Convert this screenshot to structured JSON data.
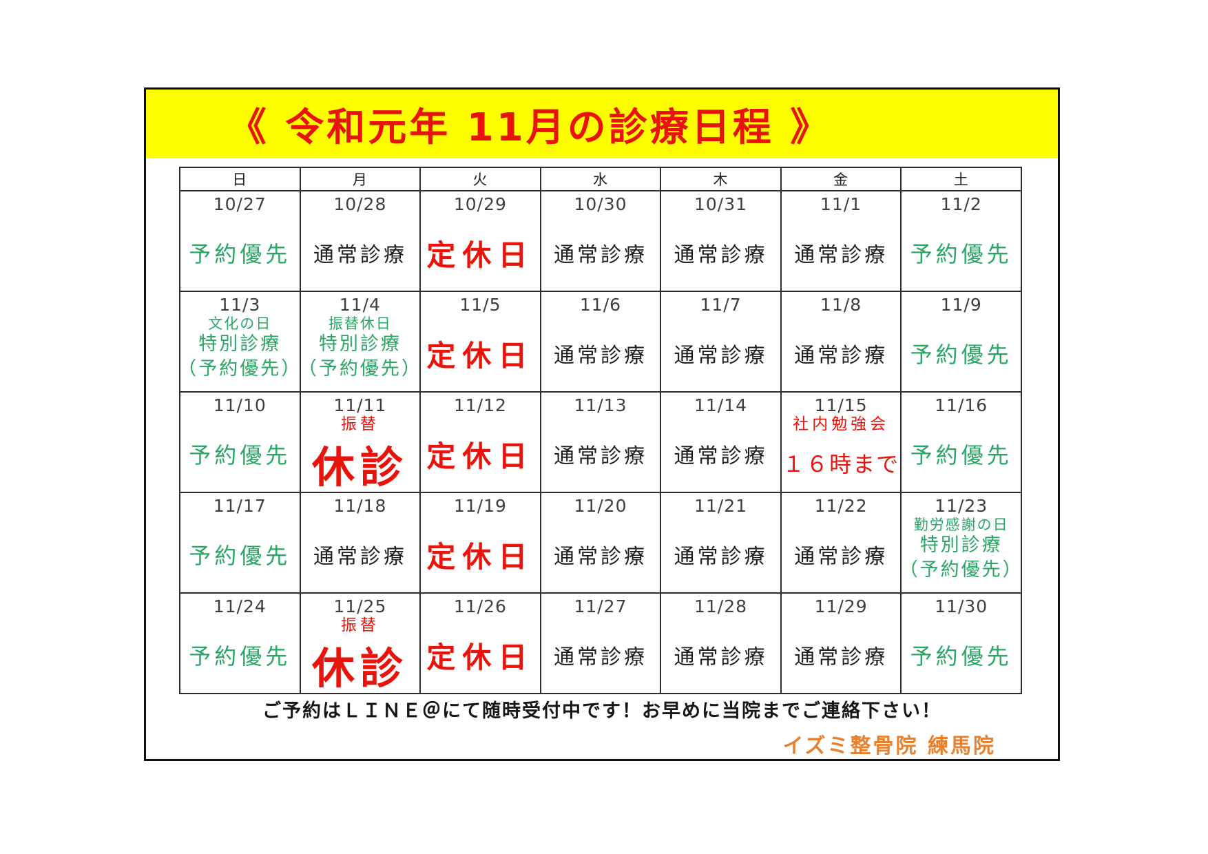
{
  "page": {
    "title": "《 令和元年 11月の診療日程 》",
    "footer_note": "ご予約はＬＩＮＥ＠にて随時受付中です！お早めに当院までご連絡下さい！",
    "signature": "イズミ整骨院 練馬院"
  },
  "colors": {
    "banner_yellow": "#ffff00",
    "title_red": "#e8140c",
    "status_red": "#e8140c",
    "status_green": "#28a764",
    "status_black": "#1e1e1e",
    "signature_orange": "#e8802e"
  },
  "calendar": {
    "weekday_headers": [
      "日",
      "月",
      "火",
      "水",
      "木",
      "金",
      "土"
    ],
    "weeks": [
      [
        {
          "date": "10/27",
          "status": [
            "予約優先"
          ],
          "style": "green"
        },
        {
          "date": "10/28",
          "status": [
            "通常診療"
          ],
          "style": "black"
        },
        {
          "date": "10/29",
          "status": [
            "定休日"
          ],
          "style": "red-large"
        },
        {
          "date": "10/30",
          "status": [
            "通常診療"
          ],
          "style": "black"
        },
        {
          "date": "10/31",
          "status": [
            "通常診療"
          ],
          "style": "black"
        },
        {
          "date": "11/1",
          "status": [
            "通常診療"
          ],
          "style": "black"
        },
        {
          "date": "11/2",
          "status": [
            "予約優先"
          ],
          "style": "green"
        }
      ],
      [
        {
          "date": "11/3",
          "note": "文化の日",
          "note_style": "green",
          "status": [
            "特別診療",
            "（予約優先）"
          ],
          "style": "green-small"
        },
        {
          "date": "11/4",
          "note": "振替休日",
          "note_style": "green",
          "status": [
            "特別診療",
            "（予約優先）"
          ],
          "style": "green-small"
        },
        {
          "date": "11/5",
          "status": [
            "定休日"
          ],
          "style": "red-large"
        },
        {
          "date": "11/6",
          "status": [
            "通常診療"
          ],
          "style": "black"
        },
        {
          "date": "11/7",
          "status": [
            "通常診療"
          ],
          "style": "black"
        },
        {
          "date": "11/8",
          "status": [
            "通常診療"
          ],
          "style": "black"
        },
        {
          "date": "11/9",
          "status": [
            "予約優先"
          ],
          "style": "green"
        }
      ],
      [
        {
          "date": "11/10",
          "status": [
            "予約優先"
          ],
          "style": "green"
        },
        {
          "date": "11/11",
          "note": "振替",
          "note_style": "red",
          "status": [
            "休診"
          ],
          "style": "red-xlarge"
        },
        {
          "date": "11/12",
          "status": [
            "定休日"
          ],
          "style": "red-large"
        },
        {
          "date": "11/13",
          "status": [
            "通常診療"
          ],
          "style": "black"
        },
        {
          "date": "11/14",
          "status": [
            "通常診療"
          ],
          "style": "black"
        },
        {
          "date": "11/15",
          "note": "社内勉強会",
          "note_style": "red",
          "status": [
            "１６時まで"
          ],
          "style": "red"
        },
        {
          "date": "11/16",
          "status": [
            "予約優先"
          ],
          "style": "green"
        }
      ],
      [
        {
          "date": "11/17",
          "status": [
            "予約優先"
          ],
          "style": "green"
        },
        {
          "date": "11/18",
          "status": [
            "通常診療"
          ],
          "style": "black"
        },
        {
          "date": "11/19",
          "status": [
            "定休日"
          ],
          "style": "red-large"
        },
        {
          "date": "11/20",
          "status": [
            "通常診療"
          ],
          "style": "black"
        },
        {
          "date": "11/21",
          "status": [
            "通常診療"
          ],
          "style": "black"
        },
        {
          "date": "11/22",
          "status": [
            "通常診療"
          ],
          "style": "black"
        },
        {
          "date": "11/23",
          "note": "勤労感謝の日",
          "note_style": "green",
          "status": [
            "特別診療",
            "（予約優先）"
          ],
          "style": "green-small"
        }
      ],
      [
        {
          "date": "11/24",
          "status": [
            "予約優先"
          ],
          "style": "green"
        },
        {
          "date": "11/25",
          "note": "振替",
          "note_style": "red",
          "status": [
            "休診"
          ],
          "style": "red-xlarge"
        },
        {
          "date": "11/26",
          "status": [
            "定休日"
          ],
          "style": "red-large"
        },
        {
          "date": "11/27",
          "status": [
            "通常診療"
          ],
          "style": "black"
        },
        {
          "date": "11/28",
          "status": [
            "通常診療"
          ],
          "style": "black"
        },
        {
          "date": "11/29",
          "status": [
            "通常診療"
          ],
          "style": "black"
        },
        {
          "date": "11/30",
          "status": [
            "予約優先"
          ],
          "style": "green"
        }
      ]
    ]
  }
}
